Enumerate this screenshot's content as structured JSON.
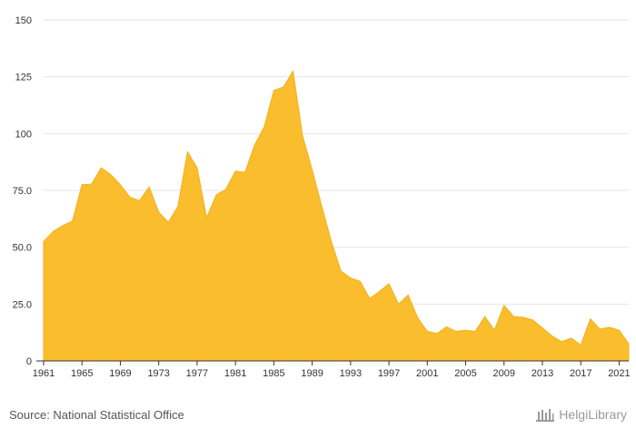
{
  "colors": {
    "area_fill": "#F9BD2E",
    "area_stroke": "#F2B21A",
    "grid": "#E6E6E6",
    "axis": "#333333",
    "text": "#333333",
    "footer_text": "#555555",
    "brand_text": "#9A9A9A"
  },
  "footer": {
    "source": "Source: National Statistical Office",
    "brand": "HelgiLibrary",
    "brand_icon": "library-columns-icon"
  },
  "chart_data": {
    "type": "area",
    "title": "",
    "xlabel": "",
    "ylabel": "",
    "grid": true,
    "legend": "none",
    "ylim": [
      0,
      150
    ],
    "xlim": [
      1961,
      2022
    ],
    "yticks": [
      0,
      25.0,
      50.0,
      75.0,
      100,
      125,
      150
    ],
    "ytick_labels": [
      "0",
      "25.0",
      "50.0",
      "75.0",
      "100",
      "125",
      "150"
    ],
    "xticks": [
      1961,
      1965,
      1969,
      1973,
      1977,
      1981,
      1985,
      1989,
      1993,
      1997,
      2001,
      2005,
      2009,
      2013,
      2017,
      2021
    ],
    "xtick_labels": [
      "1961",
      "1965",
      "1969",
      "1973",
      "1977",
      "1981",
      "1985",
      "1989",
      "1993",
      "1997",
      "2001",
      "2005",
      "2009",
      "2013",
      "2017",
      "2021"
    ],
    "x": [
      1961,
      1962,
      1963,
      1964,
      1965,
      1966,
      1967,
      1968,
      1969,
      1970,
      1971,
      1972,
      1973,
      1974,
      1975,
      1976,
      1977,
      1978,
      1979,
      1980,
      1981,
      1982,
      1983,
      1984,
      1985,
      1986,
      1987,
      1988,
      1989,
      1990,
      1991,
      1992,
      1993,
      1994,
      1995,
      1996,
      1997,
      1998,
      1999,
      2000,
      2001,
      2002,
      2003,
      2004,
      2005,
      2006,
      2007,
      2008,
      2009,
      2010,
      2011,
      2012,
      2013,
      2014,
      2015,
      2016,
      2017,
      2018,
      2019,
      2020,
      2021,
      2022
    ],
    "series": [
      {
        "values": [
          52.5,
          57.0,
          59.5,
          61.5,
          77.5,
          77.8,
          85.0,
          82.0,
          77.5,
          72.0,
          70.5,
          76.5,
          65.5,
          61.0,
          68.0,
          92.0,
          85.0,
          63.0,
          73.0,
          75.5,
          83.5,
          83.0,
          95.0,
          103.0,
          119.0,
          120.5,
          127.5,
          99.0,
          84.0,
          68.0,
          52.5,
          39.5,
          36.5,
          35.0,
          27.5,
          30.5,
          34.0,
          25.0,
          29.0,
          19.0,
          13.0,
          12.0,
          15.0,
          13.0,
          13.5,
          13.0,
          19.5,
          13.5,
          24.5,
          19.5,
          19.2,
          18.0,
          14.5,
          11.0,
          8.5,
          10.0,
          7.0,
          18.5,
          14.0,
          14.8,
          13.5,
          7.5
        ]
      }
    ]
  }
}
